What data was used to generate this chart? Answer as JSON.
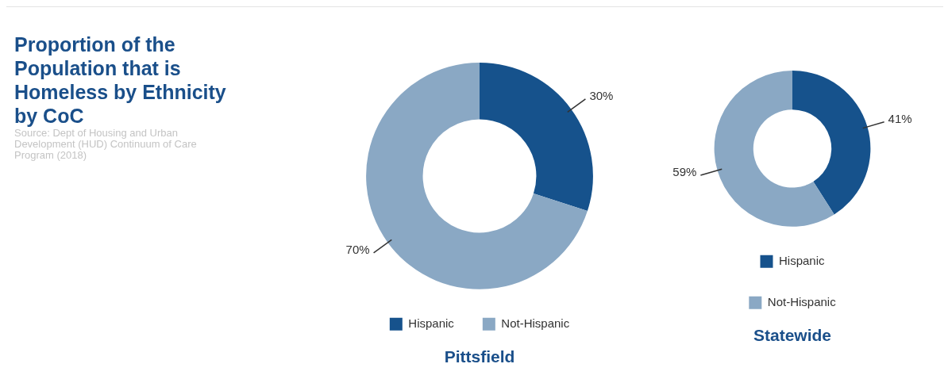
{
  "chart_data": [
    {
      "type": "other",
      "title": "Proportion of the Population that is Homeless by Ethnicity by CoC",
      "annotations": [
        "Source: Dept of Housing and Urban Development (HUD) Continuum of Care Program (2018)"
      ]
    },
    {
      "type": "donut",
      "title": "Pittsfield",
      "categories": [
        "Hispanic",
        "Not-Hispanic"
      ],
      "values": [
        30,
        70
      ],
      "colors": [
        "#16528c",
        "#8aa8c4"
      ],
      "value_labels": [
        "30%",
        "70%"
      ],
      "legend": "bottom"
    },
    {
      "type": "donut",
      "title": "Statewide",
      "categories": [
        "Hispanic",
        "Not-Hispanic"
      ],
      "values": [
        41,
        59
      ],
      "colors": [
        "#16528c",
        "#8aa8c4"
      ],
      "value_labels": [
        "41%",
        "59%"
      ],
      "legend": "bottom"
    }
  ]
}
